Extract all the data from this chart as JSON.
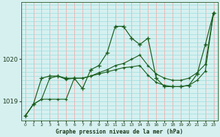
{
  "title": "Graphe pression niveau de la mer (hPa)",
  "background_color": "#d6f0f0",
  "grid_color_v": "#ff9999",
  "grid_color_h": "#99dddd",
  "line_color1": "#1a5c1a",
  "line_color2": "#1a5c1a",
  "line_color3": "#1a5c1a",
  "x_ticks": [
    0,
    1,
    2,
    3,
    4,
    5,
    6,
    7,
    8,
    9,
    10,
    11,
    12,
    13,
    14,
    15,
    16,
    17,
    18,
    19,
    20,
    21,
    22,
    23
  ],
  "xlim": [
    -0.5,
    23.5
  ],
  "ylim": [
    1018.55,
    1021.35
  ],
  "yticks": [
    1019,
    1020
  ],
  "series1_x": [
    0,
    1,
    2,
    3,
    4,
    5,
    6,
    7,
    8,
    9,
    10,
    11,
    12,
    13,
    14,
    15,
    16,
    17,
    18,
    19,
    20,
    21,
    22,
    23
  ],
  "series1": [
    1018.65,
    1018.93,
    1019.05,
    1019.05,
    1019.05,
    1019.05,
    1019.55,
    1019.55,
    1019.6,
    1019.65,
    1019.7,
    1019.75,
    1019.8,
    1019.82,
    1019.85,
    1019.62,
    1019.45,
    1019.38,
    1019.35,
    1019.35,
    1019.38,
    1019.5,
    1019.72,
    1021.1
  ],
  "series2_x": [
    0,
    1,
    2,
    3,
    4,
    5,
    6,
    7,
    8,
    9,
    10,
    11,
    12,
    13,
    14,
    15,
    16,
    17,
    18,
    19,
    20,
    21,
    22,
    23
  ],
  "series2": [
    1018.65,
    1018.93,
    1019.05,
    1019.55,
    1019.6,
    1019.52,
    1019.55,
    1019.55,
    1019.6,
    1019.68,
    1019.75,
    1019.85,
    1019.9,
    1020.0,
    1020.1,
    1019.85,
    1019.65,
    1019.55,
    1019.5,
    1019.5,
    1019.55,
    1019.68,
    1019.88,
    1021.1
  ],
  "series3_x": [
    0,
    1,
    2,
    3,
    4,
    5,
    6,
    7,
    8,
    9,
    10,
    11,
    12,
    13,
    14,
    15,
    16,
    17,
    18,
    19,
    20,
    21,
    22,
    23
  ],
  "series3": [
    1018.65,
    1018.93,
    1019.55,
    1019.6,
    1019.6,
    1019.55,
    1019.55,
    1019.3,
    1019.75,
    1019.85,
    1020.15,
    1020.78,
    1020.78,
    1020.5,
    1020.35,
    1020.5,
    1019.55,
    1019.35,
    1019.35,
    1019.35,
    1019.38,
    1019.65,
    1020.35,
    1021.1
  ]
}
